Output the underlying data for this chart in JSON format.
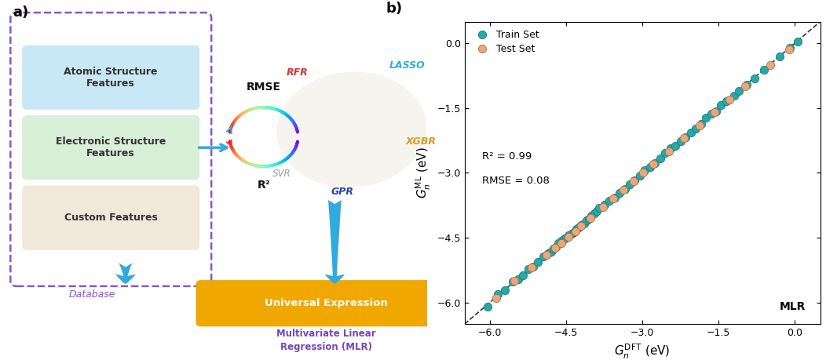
{
  "panel_b": {
    "train_x": [
      -6.05,
      -5.85,
      -5.7,
      -5.55,
      -5.45,
      -5.35,
      -5.25,
      -5.15,
      -5.05,
      -4.95,
      -4.85,
      -4.8,
      -4.75,
      -4.7,
      -4.65,
      -4.6,
      -4.55,
      -4.5,
      -4.45,
      -4.4,
      -4.35,
      -4.3,
      -4.25,
      -4.2,
      -4.15,
      -4.1,
      -4.05,
      -4.0,
      -3.95,
      -3.9,
      -3.85,
      -3.75,
      -3.65,
      -3.55,
      -3.45,
      -3.35,
      -3.25,
      -3.15,
      -3.05,
      -2.95,
      -2.85,
      -2.75,
      -2.65,
      -2.55,
      -2.45,
      -2.35,
      -2.25,
      -2.15,
      -2.05,
      -1.95,
      -1.85,
      -1.75,
      -1.65,
      -1.55,
      -1.45,
      -1.35,
      -1.2,
      -1.1,
      -0.95,
      -0.8,
      -0.6,
      -0.3,
      -0.1,
      0.05
    ],
    "train_y": [
      -6.1,
      -5.8,
      -5.72,
      -5.52,
      -5.47,
      -5.37,
      -5.23,
      -5.17,
      -5.06,
      -4.93,
      -4.87,
      -4.82,
      -4.76,
      -4.71,
      -4.63,
      -4.57,
      -4.54,
      -4.51,
      -4.44,
      -4.41,
      -4.37,
      -4.31,
      -4.26,
      -4.21,
      -4.17,
      -4.11,
      -4.06,
      -3.99,
      -3.94,
      -3.89,
      -3.81,
      -3.74,
      -3.64,
      -3.57,
      -3.47,
      -3.37,
      -3.27,
      -3.17,
      -3.06,
      -2.94,
      -2.87,
      -2.77,
      -2.67,
      -2.54,
      -2.44,
      -2.37,
      -2.27,
      -2.17,
      -2.07,
      -1.97,
      -1.87,
      -1.73,
      -1.64,
      -1.57,
      -1.44,
      -1.34,
      -1.21,
      -1.11,
      -0.96,
      -0.81,
      -0.61,
      -0.31,
      -0.11,
      0.03
    ],
    "test_x": [
      -5.88,
      -5.52,
      -5.18,
      -4.88,
      -4.72,
      -4.6,
      -4.45,
      -4.32,
      -4.2,
      -4.02,
      -3.78,
      -3.58,
      -3.38,
      -3.18,
      -2.98,
      -2.78,
      -2.48,
      -2.18,
      -1.88,
      -1.58,
      -1.28,
      -0.98,
      -0.48,
      -0.12
    ],
    "test_y": [
      -5.9,
      -5.5,
      -5.2,
      -4.9,
      -4.74,
      -4.62,
      -4.48,
      -4.35,
      -4.22,
      -4.05,
      -3.8,
      -3.6,
      -3.4,
      -3.2,
      -3.0,
      -2.8,
      -2.5,
      -2.2,
      -1.9,
      -1.6,
      -1.3,
      -1.0,
      -0.5,
      -0.15
    ],
    "train_color": "#29a8a8",
    "test_color": "#e8a87c",
    "train_edge": "#1a7a7a",
    "test_edge": "#b07040",
    "xlabel": "$G_n^{\\mathrm{DFT}}$ (eV)",
    "ylabel": "$G_n^{\\mathrm{ML}}$ (eV)",
    "xlim": [
      -6.5,
      0.5
    ],
    "ylim": [
      -6.5,
      0.5
    ],
    "xticks": [
      -6.0,
      -4.5,
      -3.0,
      -1.5,
      0.0
    ],
    "yticks": [
      0.0,
      -1.5,
      -3.0,
      -4.5,
      -6.0
    ],
    "r2_text": "R² = 0.99",
    "rmse_text": "RMSE = 0.08",
    "annotation": "MLR",
    "panel_label": "b)",
    "legend_train": "Train Set",
    "legend_test": "Test Set",
    "marker_size": 55,
    "diag_color": "#333333"
  },
  "panel_a": {
    "panel_label": "a)",
    "box1_text": "Atomic Structure\nFeatures",
    "box2_text": "Electronic Structure\nFeatures",
    "box3_text": "Custom Features",
    "box1_color": "#c8e8f5",
    "box2_color": "#d8efd8",
    "box3_color": "#f0e8d8",
    "database_label": "Database",
    "database_color": "#8855cc",
    "rmse_label": "RMSE",
    "r2_label": "R²",
    "rfr_label": "RFR",
    "rfr_color": "#dd3333",
    "lasso_label": "LASSO",
    "lasso_color": "#33aadd",
    "xgbr_label": "XGBR",
    "xgbr_color": "#dd9922",
    "svr_label": "SVR",
    "svr_color": "#999999",
    "gpr_label": "GPR",
    "gpr_color": "#2244aa",
    "universal_text": "Universal Expression",
    "universal_color": "#f0a800",
    "mlr_text": "Multivariate Linear\nRegression (MLR)",
    "mlr_color": "#7744bb",
    "arrow_color": "#33aadd"
  }
}
